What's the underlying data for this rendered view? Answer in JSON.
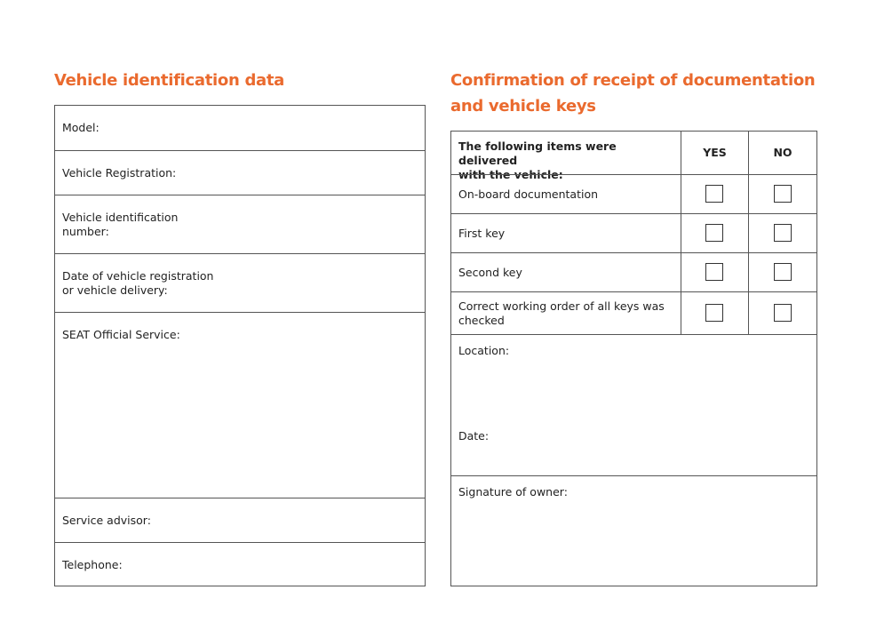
{
  "left": {
    "title": "Vehicle identification data",
    "fields": [
      "Model:",
      "Vehicle Registration:",
      "Vehicle identification\nnumber:",
      "Date of vehicle registration\nor vehicle delivery:",
      "SEAT Official Service:",
      "Service advisor:",
      "Telephone:"
    ]
  },
  "right": {
    "title_line1": "Confirmation of receipt of documentation",
    "title_line2": "and vehicle keys",
    "header": {
      "items": "The following items were delivered\nwith the vehicle:",
      "yes": "YES",
      "no": "NO"
    },
    "items": [
      "On-board documentation",
      "First key",
      "Second key",
      "Correct working order of all keys was\nchecked"
    ],
    "location": "Location:",
    "date": "Date:",
    "signature": "Signature of owner:"
  },
  "colors": {
    "accent": "#ea6a2e"
  }
}
